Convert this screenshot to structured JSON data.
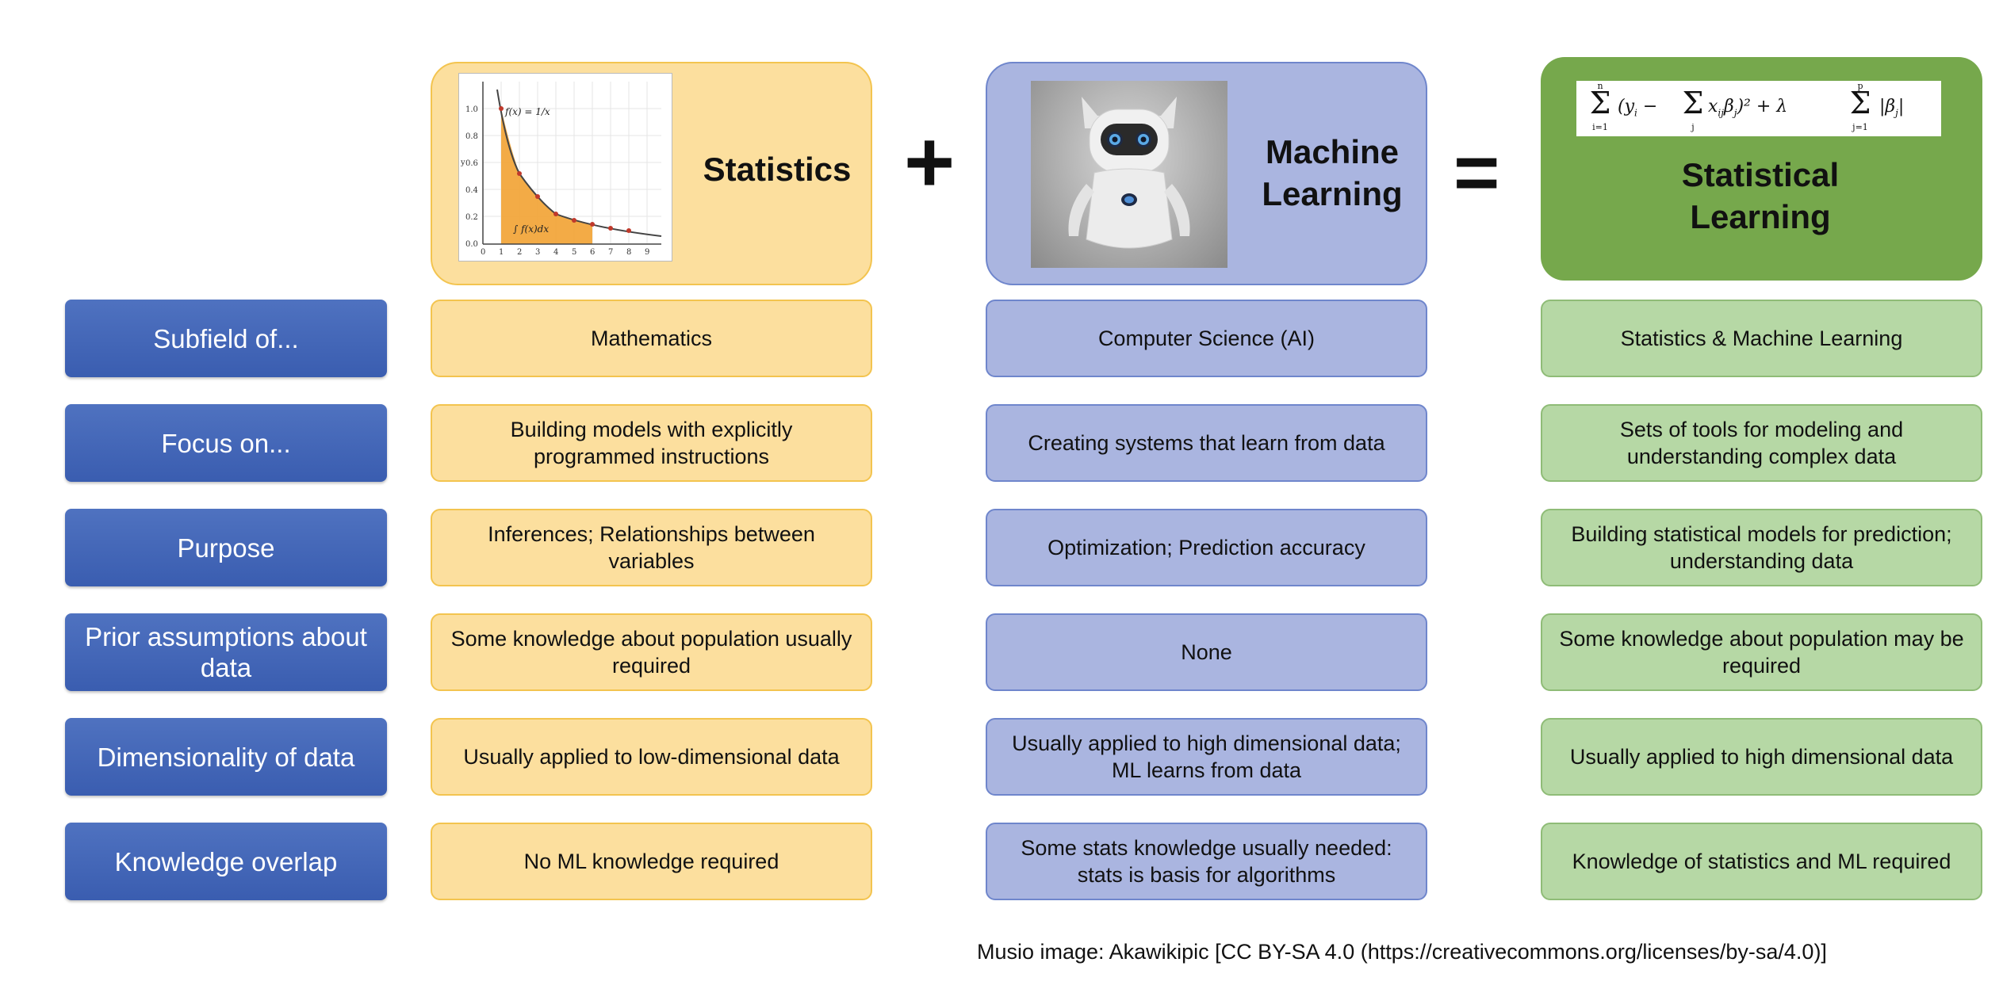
{
  "columns": {
    "statistics": {
      "title": "Statistics"
    },
    "machine_learning": {
      "title_line1": "Machine",
      "title_line2": "Learning"
    },
    "statistical_learning": {
      "title_line1": "Statistical",
      "title_line2": "Learning"
    }
  },
  "operators": {
    "plus": "+",
    "equals": "="
  },
  "graph": {
    "func_label": "f(x) = 1/x",
    "integral_label": "∫ f(x)dx",
    "y_ticks": [
      "0.0",
      "0.2",
      "0.4",
      "0.6",
      "0.8",
      "1.0"
    ],
    "x_ticks": [
      "0",
      "1",
      "2",
      "3",
      "4",
      "5",
      "6",
      "7",
      "8",
      "9"
    ],
    "y_axis_label": "y"
  },
  "formula": {
    "sum1": "Σ",
    "sum1_top": "n",
    "sum1_bottom": "i=1",
    "term1": "(y",
    "sub_i": "i",
    "minus": " − ",
    "sum2": "Σ",
    "sum2_bottom": "j",
    "term2": "x",
    "sub_ij": "ij",
    "term3": "β",
    "sub_j": "j",
    "term4": ")² + λ",
    "sum3": "Σ",
    "sum3_top": "p",
    "sum3_bottom": "j=1",
    "term5": "|β",
    "sub_j2": "j",
    "term6": "|"
  },
  "rows": [
    {
      "label": "Subfield of...",
      "statistics": "Mathematics",
      "machine_learning": "Computer Science (AI)",
      "statistical_learning": "Statistics & Machine Learning"
    },
    {
      "label": "Focus on...",
      "statistics": "Building models with explicitly programmed instructions",
      "machine_learning": "Creating systems that learn from data",
      "statistical_learning": "Sets of tools for modeling and understanding complex data"
    },
    {
      "label": "Purpose",
      "statistics": "Inferences; Relationships between variables",
      "machine_learning": "Optimization; Prediction accuracy",
      "statistical_learning": "Building statistical models for prediction;  understanding data"
    },
    {
      "label": "Prior assumptions about data",
      "statistics": "Some knowledge about population usually required",
      "machine_learning": "None",
      "statistical_learning": "Some knowledge about population may be required"
    },
    {
      "label": "Dimensionality of data",
      "statistics": "Usually applied to low-dimensional data",
      "machine_learning": "Usually applied to high dimensional data; ML learns from data",
      "statistical_learning": "Usually applied to high dimensional data"
    },
    {
      "label": "Knowledge overlap",
      "statistics": "No ML knowledge required",
      "machine_learning": "Some stats knowledge usually needed: stats is basis for algorithms",
      "statistical_learning": "Knowledge of statistics and ML required"
    }
  ],
  "caption": "Musio image: Akawikipic [CC BY-SA 4.0 (https://creativecommons.org/licenses/by-sa/4.0)]",
  "colors": {
    "row_label": "#4a6cc0",
    "statistics": "#fcdf9e",
    "machine_learning": "#aab5e0",
    "statistical_learning": "#76a84c"
  }
}
